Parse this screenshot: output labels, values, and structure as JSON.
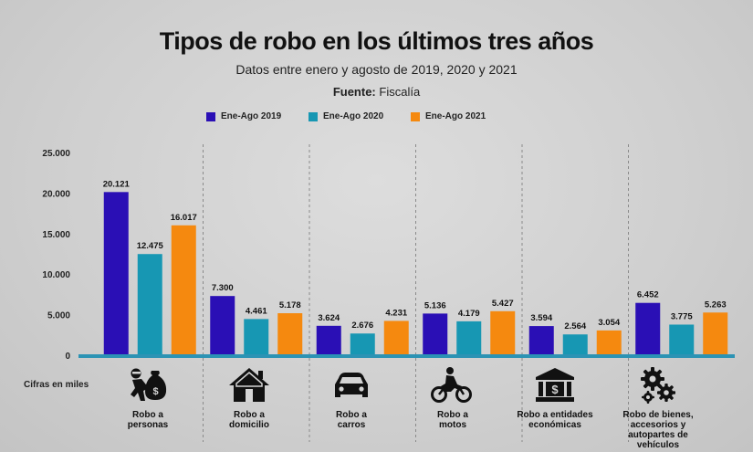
{
  "chart_data": {
    "type": "bar",
    "title": "Tipos de robo en los últimos tres años",
    "subtitle": "Datos entre enero y agosto de 2019, 2020 y 2021",
    "source_label": "Fuente:",
    "source_value": "Fiscalía",
    "ylabel": "Cifras en miles",
    "ylim": [
      0,
      25000
    ],
    "yticks": [
      0,
      5000,
      10000,
      15000,
      20000,
      25000
    ],
    "ytick_labels": [
      "0",
      "5.000",
      "10.000",
      "15.000",
      "20.000",
      "25.000"
    ],
    "categories": [
      "Robo a personas",
      "Robo a domicilio",
      "Robo a carros",
      "Robo a motos",
      "Robo a entidades económicas",
      "Robo de bienes, accesorios y autopartes de vehículos"
    ],
    "category_lines": [
      [
        "Robo a",
        "personas"
      ],
      [
        "Robo a",
        "domicilio"
      ],
      [
        "Robo a",
        "carros"
      ],
      [
        "Robo a",
        "motos"
      ],
      [
        "Robo a entidades",
        "económicas"
      ],
      [
        "Robo de bienes,",
        "accesorios y",
        "autopartes de",
        "vehículos"
      ]
    ],
    "category_icons": [
      "thief-money-bag-icon",
      "house-icon",
      "car-icon",
      "motorcycle-icon",
      "bank-icon",
      "gears-icon"
    ],
    "series": [
      {
        "name": "Ene-Ago 2019",
        "color": "#2a0fb5",
        "values": [
          20121,
          7300,
          3624,
          5136,
          3594,
          6452
        ],
        "labels": [
          "20.121",
          "7.300",
          "3.624",
          "5.136",
          "3.594",
          "6.452"
        ]
      },
      {
        "name": "Ene-Ago 2020",
        "color": "#1797b3",
        "values": [
          12475,
          4461,
          2676,
          4179,
          2564,
          3775
        ],
        "labels": [
          "12.475",
          "4.461",
          "2.676",
          "4.179",
          "2.564",
          "3.775"
        ]
      },
      {
        "name": "Ene-Ago 2021",
        "color": "#f5890f",
        "values": [
          16017,
          5178,
          4231,
          5427,
          3054,
          5263
        ],
        "labels": [
          "16.017",
          "5.178",
          "4.231",
          "5.427",
          "3.054",
          "5.263"
        ]
      }
    ],
    "grid": false,
    "legend": "top-center",
    "baseline_color": "#2c93b4"
  }
}
